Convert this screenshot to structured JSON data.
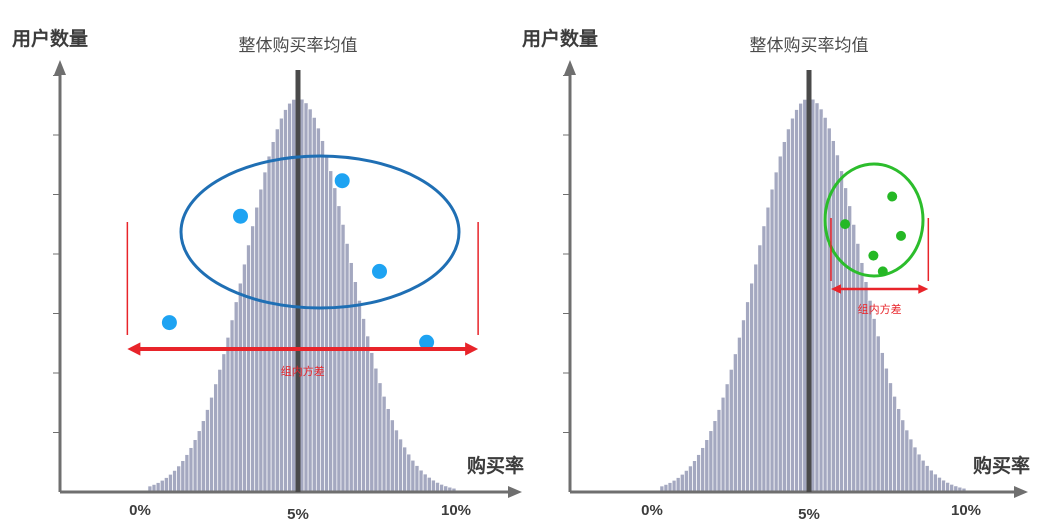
{
  "colors": {
    "bar_fill": "#a4a8c0",
    "bar_stroke": "#ffffff",
    "axis": "#6f6f6f",
    "mean_line": "#4a4a4a",
    "text": "#3c3c3c",
    "left_ellipse": "#1f6fb4",
    "left_points": "#1ea3f2",
    "right_ellipse": "#2cbd2c",
    "right_points": "#25b825",
    "variance_marker": "#e8242a"
  },
  "chart_data": [
    {
      "type": "bar",
      "ylabel": "用户数量",
      "xlabel": "购买率",
      "mean_label": "整体购买率均值",
      "mean_x": 5,
      "xlim": [
        -2,
        11.7
      ],
      "ylim": [
        0,
        1
      ],
      "x_ticks": [
        {
          "value": 0,
          "label": "0%"
        },
        {
          "value": 5,
          "label": "5%"
        },
        {
          "value": 10,
          "label": "10%"
        }
      ],
      "distribution": {
        "mean": 5,
        "std": 1.62,
        "peak": 1.0,
        "min_x": 0.25,
        "max_x": 9.9,
        "bin_width": 0.13
      },
      "group": {
        "shape": "ellipse",
        "points": [
          {
            "x": 0.93,
            "y": 0.43
          },
          {
            "x": 3.18,
            "y": 0.7
          },
          {
            "x": 6.4,
            "y": 0.79
          },
          {
            "x": 7.58,
            "y": 0.56
          },
          {
            "x": 9.07,
            "y": 0.38
          }
        ],
        "variance_label": "组内方差",
        "variance_range": [
          -0.4,
          10.7
        ]
      }
    },
    {
      "type": "bar",
      "ylabel": "用户数量",
      "xlabel": "购买率",
      "mean_label": "整体购买率均值",
      "mean_x": 5,
      "xlim": [
        -2,
        11.7
      ],
      "ylim": [
        0,
        1
      ],
      "x_ticks": [
        {
          "value": 0,
          "label": "0%"
        },
        {
          "value": 5,
          "label": "5%"
        },
        {
          "value": 10,
          "label": "10%"
        }
      ],
      "distribution": {
        "mean": 5,
        "std": 1.62,
        "peak": 1.0,
        "min_x": 0.25,
        "max_x": 9.9,
        "bin_width": 0.13
      },
      "group": {
        "shape": "circle",
        "points": [
          {
            "x": 6.15,
            "y": 0.68
          },
          {
            "x": 7.65,
            "y": 0.75
          },
          {
            "x": 7.93,
            "y": 0.65
          },
          {
            "x": 7.05,
            "y": 0.6
          },
          {
            "x": 7.35,
            "y": 0.56
          }
        ],
        "variance_label": "组内方差",
        "variance_range": [
          5.7,
          8.8
        ]
      }
    }
  ]
}
